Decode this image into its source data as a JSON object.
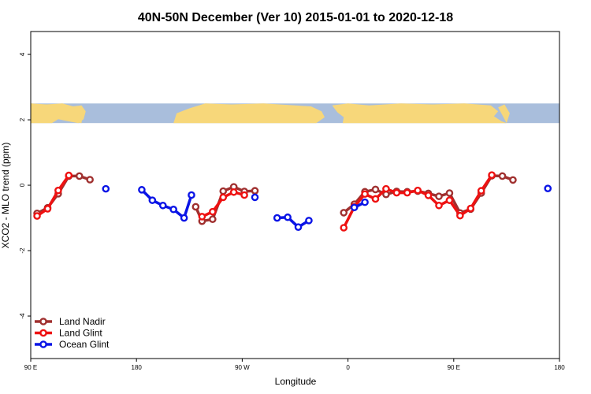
{
  "chart_data": {
    "type": "line",
    "title": "40N-50N December (Ver 10)   2015-01-01 to 2020-12-18",
    "xlabel": "Longitude",
    "ylabel": "XCO2 - MLO trend (ppm)",
    "xlim": [
      -90,
      410
    ],
    "ylim": [
      -5.3,
      4.7
    ],
    "x_ticks": [
      {
        "value": -90,
        "label": "90 E"
      },
      {
        "value": 10,
        "label": "180"
      },
      {
        "value": 110,
        "label": "90 W"
      },
      {
        "value": 210,
        "label": "0"
      },
      {
        "value": 310,
        "label": "90 E"
      },
      {
        "value": 410,
        "label": "180"
      }
    ],
    "y_ticks": [
      -4,
      -2,
      0,
      2,
      4
    ],
    "map_band": {
      "y_range": [
        1.9,
        2.5
      ],
      "land_color": "#F7D77A",
      "ocean_color": "#A9BEDC"
    },
    "legend_position": "bottom-left",
    "series": [
      {
        "name": "Land Nadir",
        "color": "#A0302F",
        "segments": [
          [
            [
              -84,
              -0.86
            ],
            [
              -74,
              -0.69
            ],
            [
              -64,
              -0.26
            ],
            [
              -54,
              0.28
            ],
            [
              -44,
              0.28
            ],
            [
              -34,
              0.17
            ]
          ],
          [
            [
              66,
              -0.66
            ],
            [
              72,
              -1.1
            ],
            [
              82,
              -1.04
            ],
            [
              92,
              -0.18
            ],
            [
              102,
              -0.05
            ],
            [
              112,
              -0.19
            ],
            [
              122,
              -0.17
            ]
          ],
          [
            [
              206,
              -0.84
            ],
            [
              216,
              -0.58
            ],
            [
              226,
              -0.2
            ],
            [
              236,
              -0.13
            ],
            [
              246,
              -0.28
            ],
            [
              256,
              -0.19
            ],
            [
              266,
              -0.2
            ],
            [
              276,
              -0.18
            ],
            [
              286,
              -0.25
            ],
            [
              296,
              -0.34
            ],
            [
              306,
              -0.24
            ],
            [
              316,
              -0.85
            ],
            [
              326,
              -0.73
            ],
            [
              336,
              -0.24
            ],
            [
              346,
              0.29
            ],
            [
              356,
              0.28
            ],
            [
              366,
              0.16
            ]
          ]
        ]
      },
      {
        "name": "Land Glint",
        "color": "#EE1111",
        "segments": [
          [
            [
              -84,
              -0.94
            ],
            [
              -74,
              -0.72
            ],
            [
              -64,
              -0.16
            ],
            [
              -54,
              0.3
            ]
          ],
          [
            [
              72,
              -0.96
            ],
            [
              82,
              -0.81
            ],
            [
              92,
              -0.37
            ],
            [
              102,
              -0.21
            ],
            [
              112,
              -0.3
            ]
          ],
          [
            [
              206,
              -1.3
            ],
            [
              216,
              -0.66
            ],
            [
              226,
              -0.27
            ],
            [
              236,
              -0.42
            ],
            [
              246,
              -0.11
            ],
            [
              256,
              -0.23
            ],
            [
              266,
              -0.23
            ],
            [
              276,
              -0.16
            ],
            [
              286,
              -0.31
            ],
            [
              296,
              -0.62
            ],
            [
              306,
              -0.46
            ],
            [
              316,
              -0.93
            ],
            [
              326,
              -0.71
            ],
            [
              336,
              -0.17
            ],
            [
              346,
              0.31
            ]
          ]
        ]
      },
      {
        "name": "Ocean Glint",
        "color": "#0A14E6",
        "segments": [
          [
            [
              -19,
              -0.11
            ]
          ],
          [
            [
              15,
              -0.14
            ],
            [
              25,
              -0.46
            ],
            [
              35,
              -0.62
            ],
            [
              45,
              -0.74
            ],
            [
              55,
              -1.0
            ],
            [
              62,
              -0.3
            ]
          ],
          [
            [
              122,
              -0.37
            ]
          ],
          [
            [
              143,
              -1.0
            ],
            [
              153,
              -0.98
            ],
            [
              163,
              -1.28
            ],
            [
              173,
              -1.08
            ]
          ],
          [
            [
              216,
              -0.68
            ],
            [
              226,
              -0.52
            ]
          ],
          [
            [
              399,
              -0.1
            ]
          ]
        ]
      }
    ]
  }
}
